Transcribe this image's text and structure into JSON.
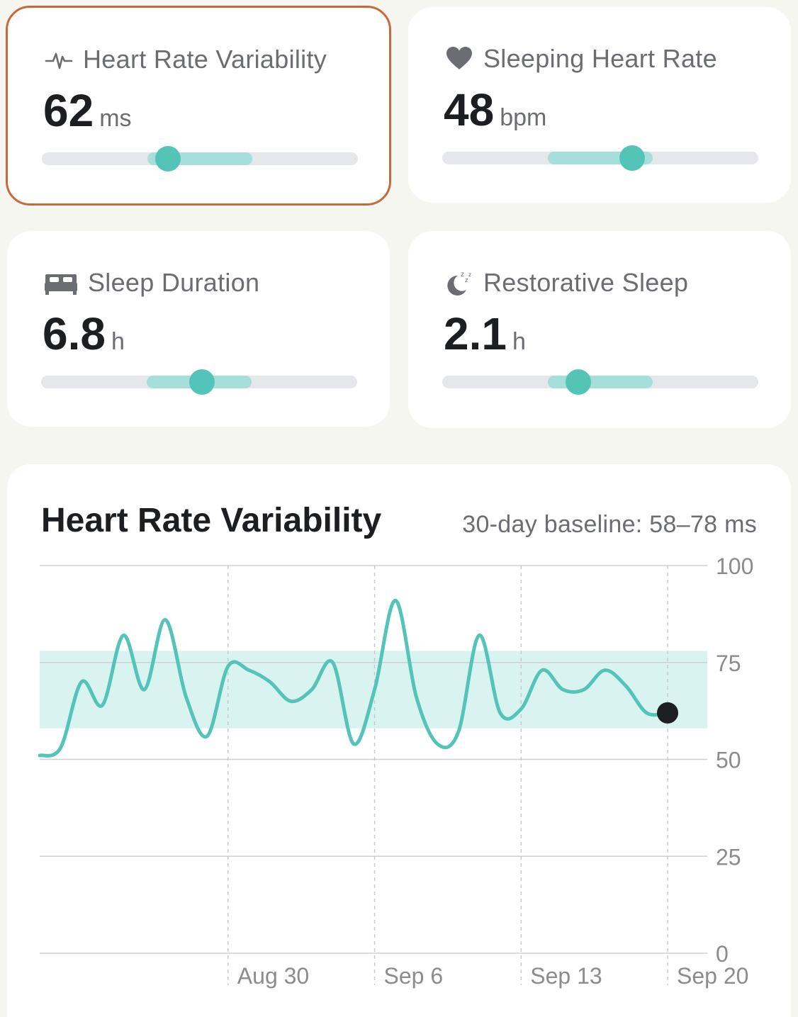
{
  "cards": [
    {
      "title": "Heart Rate Variability",
      "icon": "pulse-icon",
      "value": "62",
      "unit": "ms",
      "level": 0.4,
      "selected": true
    },
    {
      "title": "Sleeping Heart Rate",
      "icon": "heart-icon",
      "value": "48",
      "unit": "bpm",
      "level": 0.6,
      "selected": false
    },
    {
      "title": "Sleep Duration",
      "icon": "bed-icon",
      "value": "6.8",
      "unit": "h",
      "level": 0.51,
      "selected": false
    },
    {
      "title": "Restorative Sleep",
      "icon": "moon-zzz-icon",
      "value": "2.1",
      "unit": "h",
      "level": 0.43,
      "selected": false
    }
  ],
  "chart": {
    "title": "Heart Rate Variability",
    "baseline_label": "30-day baseline: 58–78 ms"
  },
  "colors": {
    "accent": "#55c4b8",
    "band": "#a6dedb",
    "selected_border": "#c8693a",
    "baseline_fill": "#d9f3f1"
  },
  "chart_data": {
    "type": "line",
    "title": "Heart Rate Variability",
    "ylim": [
      0,
      100
    ],
    "yticks": [
      "0",
      "25",
      "50",
      "75",
      "100"
    ],
    "xticks": [
      "Aug 30",
      "Sep 6",
      "Sep 13",
      "Sep 20"
    ],
    "x": [
      "Aug 21",
      "Aug 22",
      "Aug 23",
      "Aug 24",
      "Aug 25",
      "Aug 26",
      "Aug 27",
      "Aug 28",
      "Aug 29",
      "Aug 30",
      "Aug 31",
      "Sep 1",
      "Sep 2",
      "Sep 3",
      "Sep 4",
      "Sep 5",
      "Sep 6",
      "Sep 7",
      "Sep 8",
      "Sep 9",
      "Sep 10",
      "Sep 11",
      "Sep 12",
      "Sep 13",
      "Sep 14",
      "Sep 15",
      "Sep 16",
      "Sep 17",
      "Sep 18",
      "Sep 19",
      "Sep 20"
    ],
    "series": [
      {
        "values": [
          51,
          53,
          70,
          64,
          82,
          68,
          86,
          66,
          56,
          74,
          73,
          70,
          65,
          68,
          75,
          54,
          68,
          91,
          66,
          54,
          57,
          82,
          62,
          63,
          73,
          68,
          68,
          73,
          69,
          62,
          62
        ]
      }
    ],
    "baseline_range": [
      58,
      78
    ],
    "grid": true
  }
}
